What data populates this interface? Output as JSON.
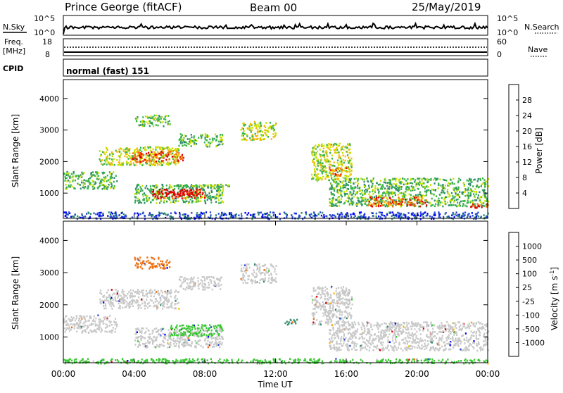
{
  "header": {
    "station": "Prince George (fitACF)",
    "beam": "Beam 00",
    "date": "25/May/2019"
  },
  "top_panels": {
    "nsky_label": "N.Sky",
    "nsky_ticks": [
      "10^5",
      "10^0"
    ],
    "nsky_right_ticks": [
      "10^5",
      "10^0"
    ],
    "nsearch_label": "N.Search",
    "freq_label": "Freq.",
    "freq_unit": "[MHz]",
    "freq_ticks": [
      "18",
      "8"
    ],
    "nave_label": "Nave",
    "nave_ticks": [
      "60",
      "0"
    ],
    "cpid_label": "CPID",
    "cpid_value": "normal (fast) 151"
  },
  "chart_data": [
    {
      "type": "heatmap",
      "name": "power",
      "ylabel": "Slant Range [km]",
      "yticks": [
        "4000",
        "3000",
        "2000",
        "1000"
      ],
      "ylim": [
        200,
        4600
      ],
      "xlim": [
        0,
        24
      ],
      "colorbar": {
        "label": "Power [dB]",
        "ticks": [
          "28",
          "24",
          "20",
          "16",
          "12",
          "8",
          "4"
        ],
        "colors": [
          "#0000ff",
          "#2a4bd0",
          "#2f8a6c",
          "#39b54a",
          "#c8e000",
          "#f5b800",
          "#f07010",
          "#e00000"
        ]
      },
      "regions": [
        {
          "t0": 0.0,
          "t1": 24.0,
          "r0": 200,
          "r1": 420,
          "level": 1
        },
        {
          "t0": 0.0,
          "t1": 3.0,
          "r0": 1150,
          "r1": 1700,
          "level": 3
        },
        {
          "t0": 2.0,
          "t1": 6.5,
          "r0": 1900,
          "r1": 2500,
          "level": 4
        },
        {
          "t0": 3.8,
          "t1": 6.8,
          "r0": 2000,
          "r1": 2350,
          "level": 6
        },
        {
          "t0": 4.0,
          "t1": 6.0,
          "r0": 3150,
          "r1": 3500,
          "level": 3
        },
        {
          "t0": 6.3,
          "t1": 9.5,
          "r0": 1150,
          "r1": 1300,
          "level": 3
        },
        {
          "t0": 4.0,
          "t1": 9.0,
          "r0": 700,
          "r1": 1300,
          "level": 3
        },
        {
          "t0": 5.0,
          "t1": 8.0,
          "r0": 850,
          "r1": 1150,
          "level": 7
        },
        {
          "t0": 6.0,
          "t1": 7.5,
          "r0": 950,
          "r1": 1100,
          "level": 8
        },
        {
          "t0": 6.5,
          "t1": 9.0,
          "r0": 2500,
          "r1": 2900,
          "level": 3
        },
        {
          "t0": 10.0,
          "t1": 12.0,
          "r0": 2700,
          "r1": 3300,
          "level": 4
        },
        {
          "t0": 14.0,
          "t1": 16.3,
          "r0": 1400,
          "r1": 2600,
          "level": 4
        },
        {
          "t0": 15.0,
          "t1": 16.0,
          "r0": 1550,
          "r1": 1850,
          "level": 6
        },
        {
          "t0": 15.0,
          "t1": 24.0,
          "r0": 600,
          "r1": 1500,
          "level": 3
        },
        {
          "t0": 17.0,
          "t1": 20.5,
          "r0": 600,
          "r1": 900,
          "level": 6
        },
        {
          "t0": 23.0,
          "t1": 24.0,
          "r0": 550,
          "r1": 720,
          "level": 7
        }
      ]
    },
    {
      "type": "heatmap",
      "name": "velocity",
      "ylabel": "Slant Range [km]",
      "yticks": [
        "4000",
        "3000",
        "2000",
        "1000"
      ],
      "ylim": [
        200,
        4600
      ],
      "xlim": [
        0,
        24
      ],
      "xticks": [
        "00:00",
        "04:00",
        "08:00",
        "12:00",
        "16:00",
        "20:00",
        "00:00"
      ],
      "xlabel": "Time UT",
      "colorbar": {
        "label": "Velocity [m s",
        "label_sup": "-1",
        "label_end": "]",
        "ticks": [
          "1000",
          "500",
          "100",
          "25",
          "-25",
          "-100",
          "-500",
          "-1000"
        ],
        "colors": [
          "#e00000",
          "#f07010",
          "#f5b800",
          "#c8c8c8",
          "#c8c8c8",
          "#39c832",
          "#2f8a6c",
          "#2a4bd0",
          "#0000ff"
        ]
      },
      "regions": [
        {
          "t0": 0.0,
          "t1": 3.0,
          "r0": 1150,
          "r1": 1700,
          "level": 3
        },
        {
          "t0": 2.0,
          "t1": 6.5,
          "r0": 1900,
          "r1": 2500,
          "level": 3
        },
        {
          "t0": 4.0,
          "t1": 9.0,
          "r0": 700,
          "r1": 1300,
          "level": 3
        },
        {
          "t0": 6.5,
          "t1": 9.0,
          "r0": 2500,
          "r1": 2900,
          "level": 3
        },
        {
          "t0": 10.0,
          "t1": 12.0,
          "r0": 2700,
          "r1": 3300,
          "level": 3
        },
        {
          "t0": 14.0,
          "t1": 16.3,
          "r0": 1400,
          "r1": 2600,
          "level": 3
        },
        {
          "t0": 15.0,
          "t1": 24.0,
          "r0": 600,
          "r1": 1500,
          "level": 3
        },
        {
          "t0": 6.0,
          "t1": 9.0,
          "r0": 1050,
          "r1": 1400,
          "level": 5
        },
        {
          "t0": 12.5,
          "t1": 13.2,
          "r0": 1400,
          "r1": 1600,
          "level": 6
        },
        {
          "t0": 4.0,
          "t1": 6.0,
          "r0": 3150,
          "r1": 3500,
          "level": 1
        },
        {
          "t0": 0.0,
          "t1": 24.0,
          "r0": 200,
          "r1": 350,
          "level": 5
        }
      ]
    }
  ]
}
